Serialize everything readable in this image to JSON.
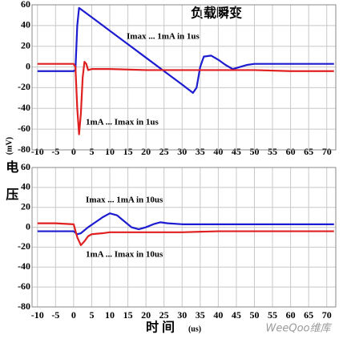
{
  "chart_data": [
    {
      "type": "line",
      "title": "负载瞬变",
      "ylabel": "电压",
      "yunit": "(mV)",
      "annotations": [
        "Imax ... 1mA in 1us",
        "1mA ... Imax in 1us"
      ],
      "xlim": [
        -11.5,
        72.5
      ],
      "xticks": [
        -10,
        -5,
        0,
        5,
        10,
        15,
        20,
        25,
        30,
        35,
        40,
        45,
        50,
        55,
        60,
        65,
        70
      ],
      "ylim": [
        -80,
        60
      ],
      "yticks": [
        -80,
        -60,
        -40,
        -20,
        0,
        20,
        40,
        60
      ],
      "grid": true,
      "series": [
        {
          "color": "#1c1cd0",
          "x": [
            -10,
            -5,
            0,
            0.5,
            1,
            1.5,
            5,
            10,
            15,
            20,
            25,
            30,
            33,
            34,
            35,
            36,
            38,
            40,
            42,
            44,
            46,
            48,
            50,
            55,
            60,
            65,
            70,
            72
          ],
          "values": [
            -4,
            -4,
            -4,
            -3,
            40,
            57,
            48,
            35,
            22,
            9,
            -4,
            -17,
            -25,
            -20,
            0,
            10,
            11,
            7,
            2,
            -2,
            0,
            2,
            3,
            3,
            3,
            3,
            3,
            3
          ]
        },
        {
          "color": "#e02020",
          "x": [
            -10,
            -5,
            0,
            0.5,
            1,
            1.5,
            2,
            2.5,
            3,
            3.5,
            4,
            5,
            10,
            20,
            30,
            40,
            50,
            60,
            70,
            72
          ],
          "values": [
            3,
            3,
            3,
            0,
            -40,
            -65,
            -45,
            -10,
            5,
            3,
            -3,
            -2,
            -2,
            -3,
            -3,
            -3,
            -3,
            -4,
            -4,
            -4
          ]
        }
      ]
    },
    {
      "type": "line",
      "xlabel": "时 间",
      "xunit": "(us)",
      "annotations": [
        "Imax ... 1mA in 10us",
        "1mA ... Imax in 10us"
      ],
      "xlim": [
        -11.5,
        72.5
      ],
      "xticks": [
        -10,
        -5,
        0,
        5,
        10,
        15,
        20,
        25,
        30,
        35,
        40,
        45,
        50,
        55,
        60,
        65,
        70
      ],
      "ylim": [
        -80,
        60
      ],
      "yticks": [
        -80,
        -60,
        -40,
        -20,
        0,
        20,
        40,
        60
      ],
      "grid": true,
      "series": [
        {
          "color": "#1c1cd0",
          "x": [
            -10,
            -5,
            0,
            1,
            2,
            4,
            6,
            8,
            10,
            12,
            14,
            16,
            18,
            20,
            22,
            24,
            26,
            30,
            40,
            50,
            60,
            70,
            72
          ],
          "values": [
            -4,
            -4,
            -4,
            -7,
            -6,
            0,
            5,
            10,
            14,
            12,
            6,
            0,
            -2,
            0,
            3,
            5,
            4,
            3,
            3,
            3,
            3,
            3,
            3
          ]
        },
        {
          "color": "#e02020",
          "x": [
            -10,
            -5,
            0,
            1,
            2,
            3,
            4,
            5,
            8,
            10,
            20,
            30,
            40,
            50,
            60,
            70,
            72
          ],
          "values": [
            4,
            4,
            3,
            -10,
            -18,
            -14,
            -9,
            -7,
            -6,
            -5,
            -5,
            -5,
            -4,
            -4,
            -4,
            -4,
            -4
          ]
        }
      ]
    }
  ],
  "watermark": "WeeQoo维库"
}
